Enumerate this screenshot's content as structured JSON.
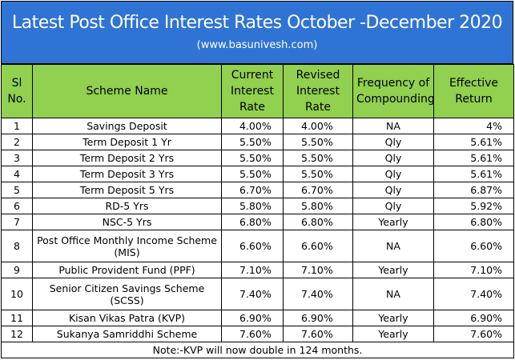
{
  "header": {
    "title": "Latest Post Office Interest Rates October -December 2020",
    "subtitle": "(www.basunivesh.com)"
  },
  "table": {
    "columns": [
      "Sl No.",
      "Scheme Name",
      "Current Interest Rate",
      "Revised Interest Rate",
      "Frequency of Compounding",
      "Effective Return"
    ],
    "rows": [
      [
        "1",
        "Savings Deposit",
        "4.00%",
        "4.00%",
        "NA",
        "4%"
      ],
      [
        "2",
        "Term Deposit 1 Yr",
        "5.50%",
        "5.50%",
        "Qly",
        "5.61%"
      ],
      [
        "3",
        "Term Deposit 2 Yrs",
        "5.50%",
        "5.50%",
        "Qly",
        "5.61%"
      ],
      [
        "4",
        "Term Deposit 3 Yrs",
        "5.50%",
        "5.50%",
        "Qly",
        "5.61%"
      ],
      [
        "5",
        "Term Deposit 5 Yrs",
        "6.70%",
        "6.70%",
        "Qly",
        "6.87%"
      ],
      [
        "6",
        "RD-5 Yrs",
        "5.80%",
        "5.80%",
        "Qly",
        "5.92%"
      ],
      [
        "7",
        "NSC-5 Yrs",
        "6.80%",
        "6.80%",
        "Yearly",
        "6.80%"
      ],
      [
        "8",
        "Post Office Monthly Income Scheme (MIS)",
        "6.60%",
        "6.60%",
        "NA",
        "6.60%"
      ],
      [
        "9",
        "Public Provident Fund (PPF)",
        "7.10%",
        "7.10%",
        "Yearly",
        "7.10%"
      ],
      [
        "10",
        "Senior Citizen Savings Scheme (SCSS)",
        "7.40%",
        "7.40%",
        "NA",
        "7.40%"
      ],
      [
        "11",
        "Kisan Vikas Patra (KVP)",
        "6.90%",
        "6.90%",
        "Yearly",
        "6.90%"
      ],
      [
        "12",
        "Sukanya Samriddhi Scheme",
        "7.60%",
        "7.60%",
        "Yearly",
        "7.60%"
      ]
    ],
    "note": "Note:-KVP will now double in 124 months."
  }
}
